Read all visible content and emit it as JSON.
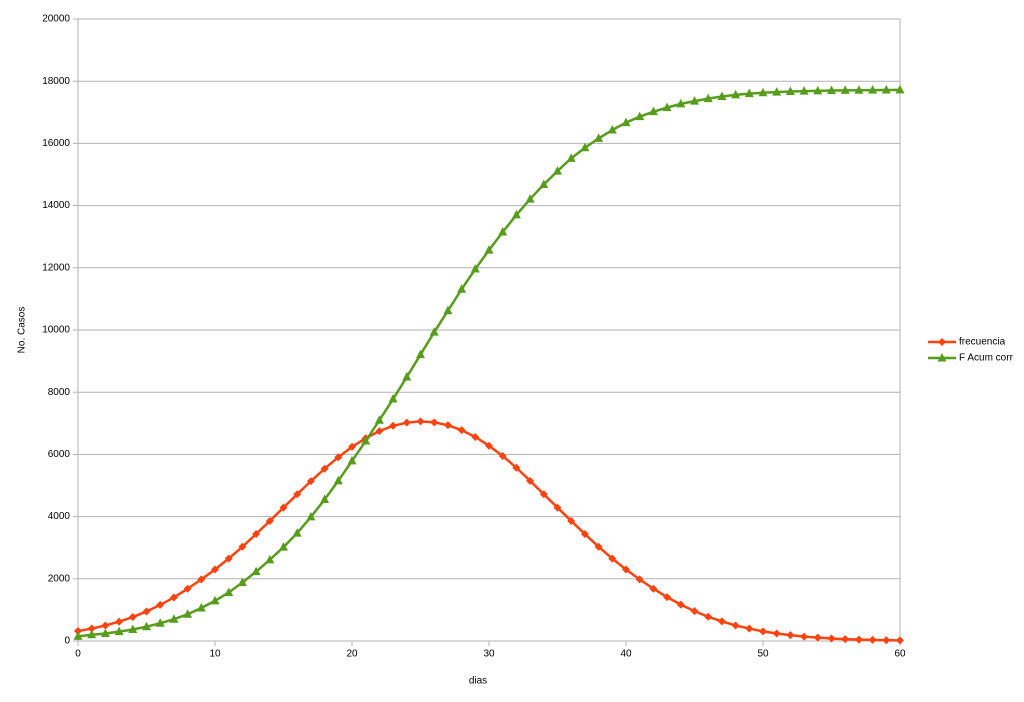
{
  "chart_data": {
    "type": "line",
    "x_label": "dias",
    "y_label": "No. Casos",
    "x": [
      0,
      1,
      2,
      3,
      4,
      5,
      6,
      7,
      8,
      9,
      10,
      11,
      12,
      13,
      14,
      15,
      16,
      17,
      18,
      19,
      20,
      21,
      22,
      23,
      24,
      25,
      26,
      27,
      28,
      29,
      30,
      31,
      32,
      33,
      34,
      35,
      36,
      37,
      38,
      39,
      40,
      41,
      42,
      43,
      44,
      45,
      46,
      47,
      48,
      49,
      50,
      51,
      52,
      53,
      54,
      55,
      56,
      57,
      58,
      59,
      60
    ],
    "series": [
      {
        "name": "frecuencia",
        "color": "#ff420e",
        "marker": "diamond",
        "values": [
          320,
          400,
          500,
          620,
          770,
          950,
          1160,
          1400,
          1680,
          1980,
          2300,
          2650,
          3030,
          3440,
          3860,
          4290,
          4720,
          5140,
          5540,
          5910,
          6240,
          6520,
          6750,
          6920,
          7020,
          7060,
          7030,
          6940,
          6780,
          6560,
          6280,
          5950,
          5570,
          5150,
          4720,
          4290,
          3860,
          3440,
          3030,
          2650,
          2300,
          1980,
          1680,
          1410,
          1170,
          960,
          780,
          630,
          500,
          400,
          310,
          240,
          190,
          140,
          110,
          80,
          60,
          45,
          35,
          25,
          20
        ]
      },
      {
        "name": "F Acum corr",
        "color": "#579d1c",
        "marker": "triangle",
        "values": [
          150,
          200,
          240,
          300,
          370,
          460,
          570,
          700,
          860,
          1060,
          1290,
          1560,
          1880,
          2230,
          2610,
          3020,
          3470,
          3990,
          4550,
          5150,
          5790,
          6430,
          7100,
          7780,
          8490,
          9210,
          9930,
          10620,
          11310,
          11960,
          12570,
          13150,
          13700,
          14210,
          14680,
          15110,
          15520,
          15860,
          16160,
          16430,
          16670,
          16860,
          17020,
          17150,
          17270,
          17360,
          17440,
          17510,
          17560,
          17600,
          17630,
          17650,
          17670,
          17680,
          17690,
          17700,
          17705,
          17710,
          17715,
          17718,
          17720
        ]
      }
    ],
    "xlim": [
      0,
      60
    ],
    "xticks": [
      0,
      10,
      20,
      30,
      40,
      50,
      60
    ],
    "ylim": [
      0,
      20000
    ],
    "yticks": [
      0,
      2000,
      4000,
      6000,
      8000,
      10000,
      12000,
      14000,
      16000,
      18000,
      20000
    ],
    "grid": true,
    "legend": "right"
  }
}
